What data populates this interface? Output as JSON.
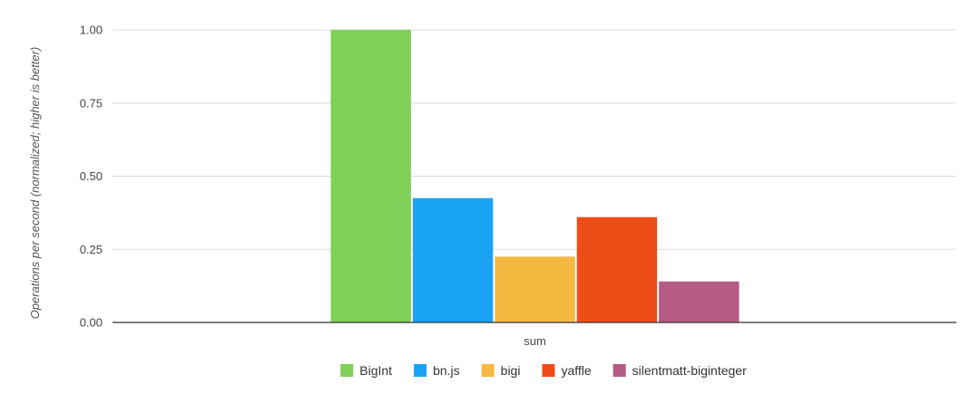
{
  "chart_data": {
    "type": "bar",
    "categories": [
      "sum"
    ],
    "series": [
      {
        "name": "BigInt",
        "values": [
          1.0
        ],
        "color": "#7ed058"
      },
      {
        "name": "bn.js",
        "values": [
          0.425
        ],
        "color": "#1aa3f5"
      },
      {
        "name": "bigi",
        "values": [
          0.225
        ],
        "color": "#f5b841"
      },
      {
        "name": "yaffle",
        "values": [
          0.36
        ],
        "color": "#ef4d17"
      },
      {
        "name": "silentmatt-biginteger",
        "values": [
          0.14
        ],
        "color": "#b55b84"
      }
    ],
    "title": "",
    "xlabel": "",
    "ylabel": "Operations per second (normalized; higher is better)",
    "ylim": [
      0,
      1.0
    ],
    "yticks": [
      "0.00",
      "0.25",
      "0.50",
      "0.75",
      "1.00"
    ],
    "ytick_values": [
      0,
      0.25,
      0.5,
      0.75,
      1.0
    ],
    "grid": true,
    "legend_position": "bottom"
  }
}
